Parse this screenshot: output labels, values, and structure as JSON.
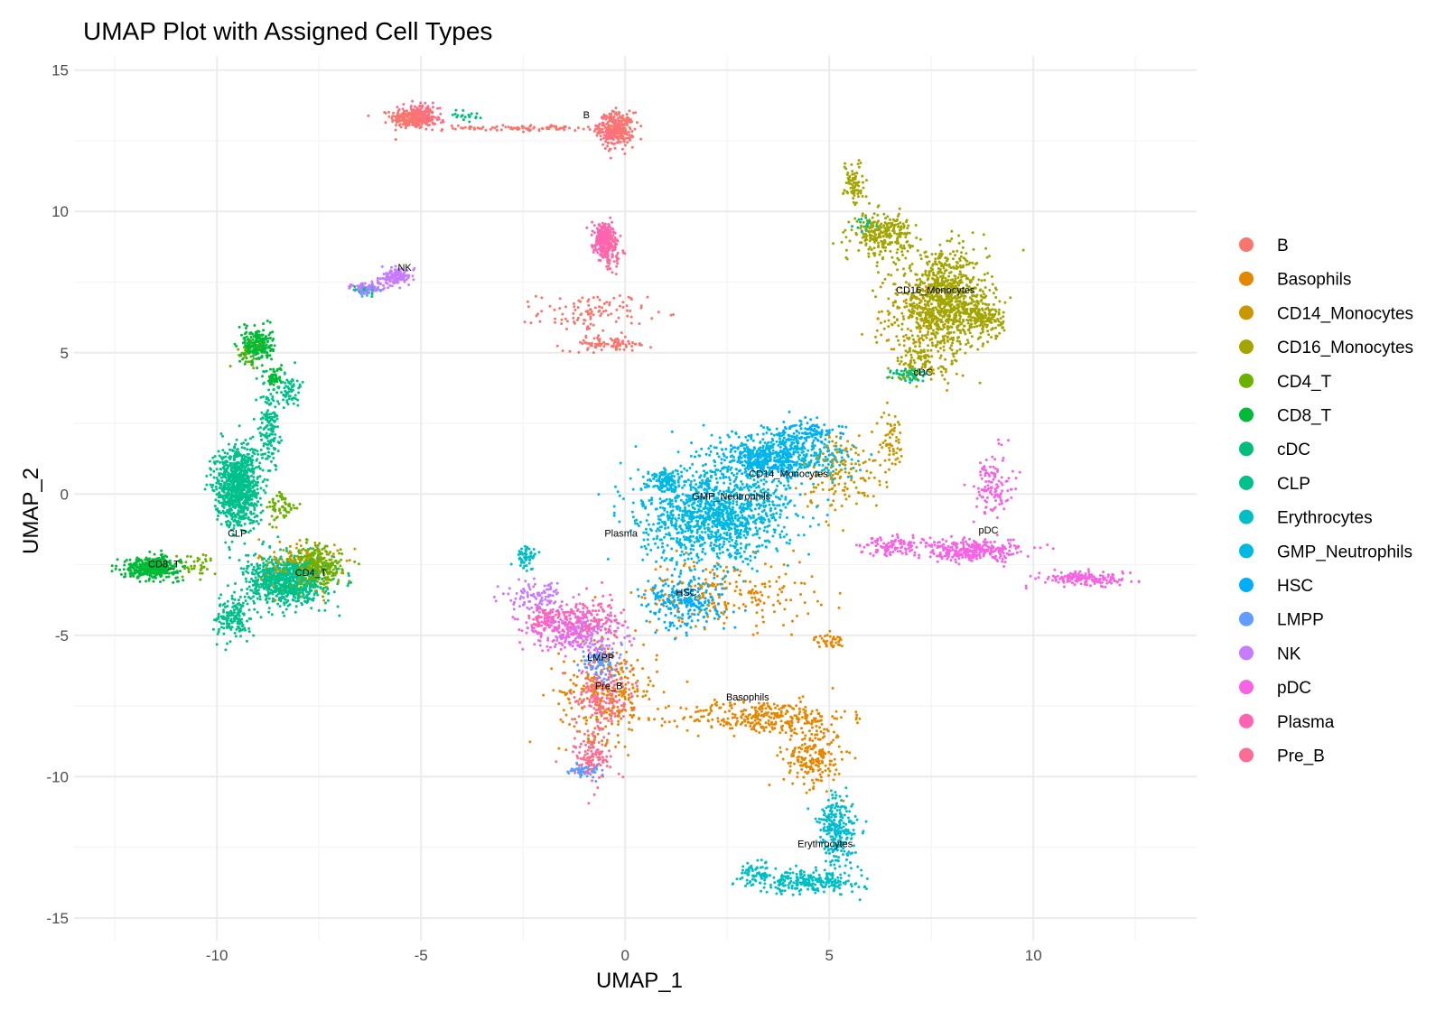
{
  "chart_data": {
    "type": "scatter",
    "title": "UMAP Plot with Assigned Cell Types",
    "xlabel": "UMAP_1",
    "ylabel": "UMAP_2",
    "xlim": [
      -13.5,
      14
    ],
    "ylim": [
      -15.8,
      15.5
    ],
    "x_ticks": [
      -10,
      -5,
      0,
      5,
      10
    ],
    "y_ticks": [
      15,
      10,
      5,
      0,
      -5,
      -10,
      -15
    ],
    "x_tick_labels": [
      "-10",
      "-5",
      "0",
      "5",
      "10"
    ],
    "y_tick_labels": [
      "15",
      "10",
      "5",
      "0",
      "-5",
      "-10",
      "-15"
    ],
    "grid": true,
    "legend_position": "right",
    "series": [
      {
        "name": "B",
        "color": "#F8766D",
        "label": {
          "text": "B",
          "x": -0.95,
          "y": 13.3
        },
        "clusters": [
          [
            -5.2,
            13.3,
            0.45,
            0.3,
            260
          ],
          [
            -0.2,
            12.9,
            0.35,
            0.5,
            240
          ],
          [
            -2.5,
            12.95,
            1.6,
            0.08,
            90
          ],
          [
            -0.8,
            6.4,
            1.1,
            0.6,
            110
          ],
          [
            -0.4,
            5.3,
            0.9,
            0.2,
            80
          ]
        ]
      },
      {
        "name": "Basophils",
        "color": "#E58700",
        "label": {
          "text": "Basophils",
          "x": 3.0,
          "y": -7.3
        },
        "clusters": [
          [
            3.4,
            -7.9,
            1.7,
            0.5,
            320
          ],
          [
            -0.4,
            -7.0,
            1.0,
            1.4,
            260
          ],
          [
            4.6,
            -9.3,
            0.6,
            0.9,
            200
          ],
          [
            2.5,
            -3.5,
            1.8,
            1.0,
            200
          ],
          [
            5.0,
            -5.2,
            0.3,
            0.2,
            40
          ]
        ]
      },
      {
        "name": "CD14_Monocytes",
        "color": "#C99800",
        "label": {
          "text": "CD14_Monocytes",
          "x": 4.0,
          "y": 0.6
        },
        "clusters": [
          [
            -8.0,
            -2.5,
            0.8,
            0.8,
            140
          ],
          [
            5.3,
            0.8,
            0.8,
            1.2,
            150
          ],
          [
            6.5,
            1.8,
            0.3,
            1.0,
            60
          ],
          [
            7.2,
            6.0,
            1.0,
            1.5,
            120
          ]
        ]
      },
      {
        "name": "CD16_Monocytes",
        "color": "#A3A500",
        "label": {
          "text": "CD16_Monocytes",
          "x": 7.6,
          "y": 7.1
        },
        "clusters": [
          [
            7.8,
            6.8,
            0.9,
            1.4,
            900
          ],
          [
            6.3,
            9.2,
            0.6,
            0.6,
            260
          ],
          [
            5.6,
            11.0,
            0.2,
            0.7,
            80
          ],
          [
            8.8,
            6.2,
            0.4,
            0.6,
            160
          ],
          [
            7.2,
            4.6,
            0.5,
            0.5,
            80
          ]
        ]
      },
      {
        "name": "CD4_T",
        "color": "#6BB100",
        "label": {
          "text": "CD4_T",
          "x": -7.7,
          "y": -2.9
        },
        "clusters": [
          [
            -7.6,
            -2.6,
            0.55,
            0.6,
            320
          ],
          [
            -8.4,
            -0.5,
            0.3,
            0.5,
            60
          ],
          [
            -9.2,
            5.0,
            0.3,
            0.4,
            40
          ],
          [
            -10.5,
            -2.5,
            0.4,
            0.35,
            40
          ]
        ]
      },
      {
        "name": "CD8_T",
        "color": "#00BA38",
        "label": {
          "text": "CD8_T",
          "x": -11.3,
          "y": -2.6
        },
        "clusters": [
          [
            -11.6,
            -2.6,
            0.55,
            0.3,
            420
          ],
          [
            -9.0,
            5.3,
            0.3,
            0.5,
            220
          ],
          [
            -8.6,
            4.1,
            0.15,
            0.35,
            60
          ]
        ]
      },
      {
        "name": "cDC",
        "color": "#00BF7D",
        "label": {
          "text": "cDC",
          "x": 7.3,
          "y": 4.2
        },
        "clusters": [
          [
            7.0,
            4.2,
            0.35,
            0.25,
            60
          ],
          [
            -6.3,
            7.2,
            0.3,
            0.15,
            20
          ],
          [
            -3.9,
            13.4,
            0.3,
            0.2,
            20
          ],
          [
            5.9,
            9.5,
            0.2,
            0.2,
            20
          ]
        ]
      },
      {
        "name": "CLP",
        "color": "#00C08B",
        "label": {
          "text": "CLP",
          "x": -9.5,
          "y": -1.5
        },
        "clusters": [
          [
            -9.5,
            0.3,
            0.45,
            1.2,
            900
          ],
          [
            -8.3,
            -3.1,
            0.8,
            0.7,
            800
          ],
          [
            -9.6,
            -4.4,
            0.35,
            0.6,
            160
          ],
          [
            -8.7,
            2.6,
            0.2,
            1.3,
            160
          ],
          [
            -8.2,
            3.7,
            0.2,
            0.5,
            60
          ]
        ]
      },
      {
        "name": "Erythrocytes",
        "color": "#00BFC4",
        "label": {
          "text": "Erythrocytes",
          "x": 4.9,
          "y": -12.5
        },
        "clusters": [
          [
            4.5,
            -13.7,
            1.1,
            0.35,
            260
          ],
          [
            5.2,
            -11.8,
            0.4,
            1.0,
            160
          ],
          [
            3.2,
            -13.4,
            0.3,
            0.4,
            60
          ],
          [
            -2.4,
            -2.2,
            0.2,
            0.3,
            60
          ]
        ]
      },
      {
        "name": "GMP_Neutrophils",
        "color": "#00B9E3",
        "label": {
          "text": "GMP_Neutrophils",
          "x": 2.6,
          "y": -0.2
        },
        "clusters": [
          [
            2.2,
            -0.8,
            1.5,
            1.3,
            1200
          ],
          [
            3.8,
            1.3,
            1.3,
            0.8,
            500
          ],
          [
            1.0,
            0.5,
            0.4,
            0.3,
            120
          ],
          [
            5.2,
            -12.0,
            0.4,
            1.0,
            80
          ]
        ]
      },
      {
        "name": "HSC",
        "color": "#00ADFA",
        "label": {
          "text": "HSC",
          "x": 1.5,
          "y": -3.6
        },
        "clusters": [
          [
            1.5,
            -3.8,
            0.8,
            0.8,
            260
          ],
          [
            3.5,
            1.3,
            1.0,
            0.6,
            200
          ],
          [
            4.5,
            2.2,
            0.6,
            0.4,
            100
          ]
        ]
      },
      {
        "name": "LMPP",
        "color": "#619CFF",
        "label": {
          "text": "LMPP",
          "x": -0.6,
          "y": -5.9
        },
        "clusters": [
          [
            -0.6,
            -6.0,
            0.4,
            0.5,
            100
          ],
          [
            -1.0,
            -9.8,
            0.3,
            0.2,
            60
          ],
          [
            -6.3,
            7.2,
            0.3,
            0.15,
            30
          ]
        ]
      },
      {
        "name": "NK",
        "color": "#C77CFF",
        "label": {
          "text": "NK",
          "x": -5.4,
          "y": 7.9
        },
        "clusters": [
          [
            -5.6,
            7.7,
            0.3,
            0.2,
            140
          ],
          [
            -6.3,
            7.3,
            0.35,
            0.15,
            80
          ],
          [
            -2.2,
            -3.6,
            0.7,
            0.5,
            100
          ],
          [
            -1.0,
            -5.0,
            0.8,
            0.6,
            120
          ]
        ]
      },
      {
        "name": "pDC",
        "color": "#F564E3",
        "label": {
          "text": "pDC",
          "x": 8.9,
          "y": -1.4
        },
        "clusters": [
          [
            8.5,
            -2.0,
            1.1,
            0.3,
            320
          ],
          [
            11.2,
            -3.0,
            0.9,
            0.2,
            160
          ],
          [
            9.0,
            0.3,
            0.4,
            1.0,
            120
          ],
          [
            6.5,
            -1.8,
            0.6,
            0.3,
            100
          ],
          [
            -1.5,
            -4.8,
            0.8,
            0.6,
            160
          ]
        ]
      },
      {
        "name": "Plasma",
        "color": "#FF64B0",
        "label": {
          "text": "Plasma",
          "x": -0.1,
          "y": -1.5
        },
        "clusters": [
          [
            -0.5,
            9.0,
            0.2,
            0.5,
            260
          ],
          [
            -0.9,
            -4.5,
            0.8,
            0.7,
            160
          ],
          [
            -1.9,
            -4.4,
            0.4,
            0.4,
            80
          ]
        ]
      },
      {
        "name": "Pre_B",
        "color": "#FF6C91",
        "label": {
          "text": "Pre_B",
          "x": -0.4,
          "y": -6.9
        },
        "clusters": [
          [
            -0.6,
            -7.2,
            0.6,
            1.0,
            200
          ],
          [
            -0.8,
            -9.3,
            0.4,
            0.8,
            120
          ],
          [
            -5.0,
            13.4,
            0.4,
            0.4,
            100
          ],
          [
            -0.3,
            12.8,
            0.3,
            0.5,
            80
          ],
          [
            -0.3,
            8.5,
            0.25,
            0.6,
            60
          ]
        ]
      }
    ]
  }
}
